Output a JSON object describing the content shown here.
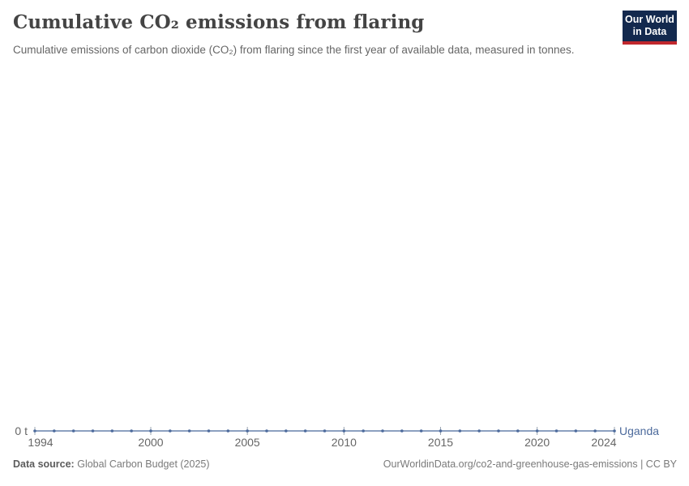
{
  "header": {
    "title": "Cumulative CO₂ emissions from flaring",
    "subtitle": "Cumulative emissions of carbon dioxide (CO₂) from flaring since the first year of available data, measured in tonnes.",
    "logo": {
      "line1": "Our World",
      "line2": "in Data",
      "bg_color": "#13294e",
      "accent_color": "#c0272d"
    }
  },
  "footer": {
    "source_label": "Data source:",
    "source_value": "Global Carbon Budget (2025)",
    "link_text": "OurWorldinData.org/co2-and-greenhouse-gas-emissions | CC BY"
  },
  "chart_data": {
    "type": "line",
    "title": "Cumulative CO₂ emissions from flaring",
    "xlabel": "",
    "ylabel": "",
    "grid": false,
    "legend_position": "end-of-line",
    "x": [
      1994,
      1995,
      1996,
      1997,
      1998,
      1999,
      2000,
      2001,
      2002,
      2003,
      2004,
      2005,
      2006,
      2007,
      2008,
      2009,
      2010,
      2011,
      2012,
      2013,
      2014,
      2015,
      2016,
      2017,
      2018,
      2019,
      2020,
      2021,
      2022,
      2023,
      2024
    ],
    "x_ticks": [
      1994,
      2000,
      2005,
      2010,
      2015,
      2020,
      2024
    ],
    "y_zero_label": "0 t",
    "ylim": [
      0,
      0
    ],
    "series": [
      {
        "name": "Uganda",
        "color": "#4C6A9C",
        "values": [
          0,
          0,
          0,
          0,
          0,
          0,
          0,
          0,
          0,
          0,
          0,
          0,
          0,
          0,
          0,
          0,
          0,
          0,
          0,
          0,
          0,
          0,
          0,
          0,
          0,
          0,
          0,
          0,
          0,
          0,
          0
        ]
      }
    ],
    "tick_color": "#666666",
    "axis_tick_mark_color": "#9aa4b0"
  }
}
